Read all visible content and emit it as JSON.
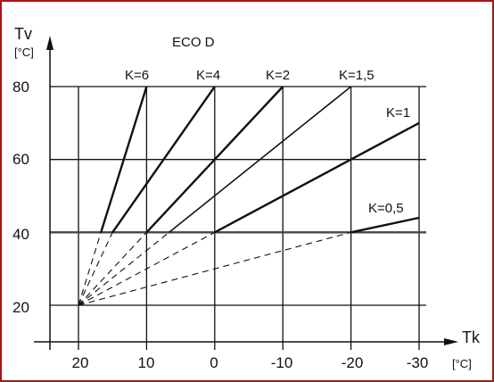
{
  "chart_data": {
    "type": "line",
    "title": "ECO D",
    "ylabel": "Tv",
    "yunit": "[°C]",
    "xlabel": "Tk",
    "xunit": "[°C]",
    "x_ticks": [
      "20",
      "10",
      "0",
      "-10",
      "-20",
      "-30"
    ],
    "y_ticks": [
      "80",
      "60",
      "40",
      "20"
    ],
    "xlim": [
      20,
      -30
    ],
    "ylim": [
      20,
      80
    ],
    "grid": true,
    "x_reversed": true,
    "origin": {
      "x": 20,
      "y": 20
    },
    "base_temperature": 40,
    "series": [
      {
        "name": "K=6",
        "start": {
          "x": 16.7,
          "y": 40
        },
        "end": {
          "x": 10,
          "y": 80
        }
      },
      {
        "name": "K=4",
        "start": {
          "x": 15,
          "y": 40
        },
        "end": {
          "x": 0,
          "y": 80
        }
      },
      {
        "name": "K=2",
        "start": {
          "x": 10,
          "y": 40
        },
        "end": {
          "x": -10,
          "y": 80
        }
      },
      {
        "name": "K=1,5",
        "start": {
          "x": 6.7,
          "y": 40
        },
        "end": {
          "x": -20,
          "y": 80
        }
      },
      {
        "name": "K=1",
        "start": {
          "x": 0,
          "y": 40
        },
        "end": {
          "x": -30,
          "y": 70
        }
      },
      {
        "name": "K=0,5",
        "start": {
          "x": -20,
          "y": 40
        },
        "end": {
          "x": -30,
          "y": 44
        }
      }
    ]
  }
}
